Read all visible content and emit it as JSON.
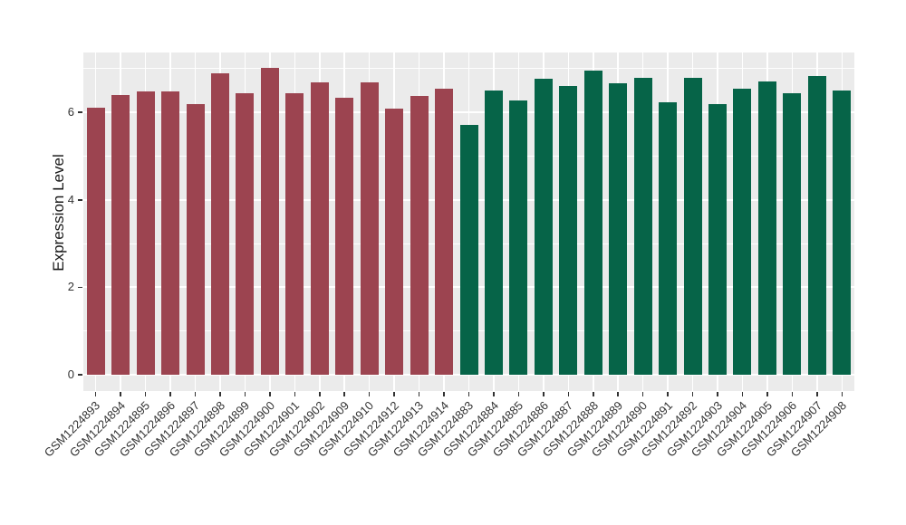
{
  "figure": {
    "background": "#FFFFFF",
    "panel_background": "#EBEBEB",
    "gridline_color": "#FFFFFF",
    "axis_text_color": "#333333",
    "axis_title_color": "#1A1A1A",
    "tick_mark_color": "#333333"
  },
  "chart_data": {
    "type": "bar",
    "title": "",
    "xlabel": "",
    "ylabel": "Expression Level",
    "ylim": [
      -0.37,
      7.37
    ],
    "yticks_major": [
      0,
      2,
      4,
      6
    ],
    "yticks_minor": [
      1,
      3,
      5,
      7
    ],
    "grid": true,
    "legend_position": "none",
    "group_colors": {
      "group1": "#9C4450",
      "group2": "#066448"
    },
    "bars": [
      {
        "label": "GSM1224893",
        "value": 6.1,
        "group": "group1"
      },
      {
        "label": "GSM1224894",
        "value": 6.39,
        "group": "group1"
      },
      {
        "label": "GSM1224895",
        "value": 6.49,
        "group": "group1"
      },
      {
        "label": "GSM1224896",
        "value": 6.49,
        "group": "group1"
      },
      {
        "label": "GSM1224897",
        "value": 6.2,
        "group": "group1"
      },
      {
        "label": "GSM1224898",
        "value": 6.9,
        "group": "group1"
      },
      {
        "label": "GSM1224899",
        "value": 6.44,
        "group": "group1"
      },
      {
        "label": "GSM1224900",
        "value": 7.02,
        "group": "group1"
      },
      {
        "label": "GSM1224901",
        "value": 6.44,
        "group": "group1"
      },
      {
        "label": "GSM1224902",
        "value": 6.69,
        "group": "group1"
      },
      {
        "label": "GSM1224909",
        "value": 6.33,
        "group": "group1"
      },
      {
        "label": "GSM1224910",
        "value": 6.69,
        "group": "group1"
      },
      {
        "label": "GSM1224912",
        "value": 6.08,
        "group": "group1"
      },
      {
        "label": "GSM1224913",
        "value": 6.37,
        "group": "group1"
      },
      {
        "label": "GSM1224914",
        "value": 6.55,
        "group": "group1"
      },
      {
        "label": "GSM1224883",
        "value": 5.71,
        "group": "group2"
      },
      {
        "label": "GSM1224884",
        "value": 6.51,
        "group": "group2"
      },
      {
        "label": "GSM1224885",
        "value": 6.27,
        "group": "group2"
      },
      {
        "label": "GSM1224886",
        "value": 6.78,
        "group": "group2"
      },
      {
        "label": "GSM1224887",
        "value": 6.61,
        "group": "group2"
      },
      {
        "label": "GSM1224888",
        "value": 6.95,
        "group": "group2"
      },
      {
        "label": "GSM1224889",
        "value": 6.67,
        "group": "group2"
      },
      {
        "label": "GSM1224890",
        "value": 6.8,
        "group": "group2"
      },
      {
        "label": "GSM1224891",
        "value": 6.23,
        "group": "group2"
      },
      {
        "label": "GSM1224892",
        "value": 6.8,
        "group": "group2"
      },
      {
        "label": "GSM1224903",
        "value": 6.2,
        "group": "group2"
      },
      {
        "label": "GSM1224904",
        "value": 6.55,
        "group": "group2"
      },
      {
        "label": "GSM1224905",
        "value": 6.7,
        "group": "group2"
      },
      {
        "label": "GSM1224906",
        "value": 6.43,
        "group": "group2"
      },
      {
        "label": "GSM1224907",
        "value": 6.83,
        "group": "group2"
      },
      {
        "label": "GSM1224908",
        "value": 6.5,
        "group": "group2"
      }
    ]
  }
}
